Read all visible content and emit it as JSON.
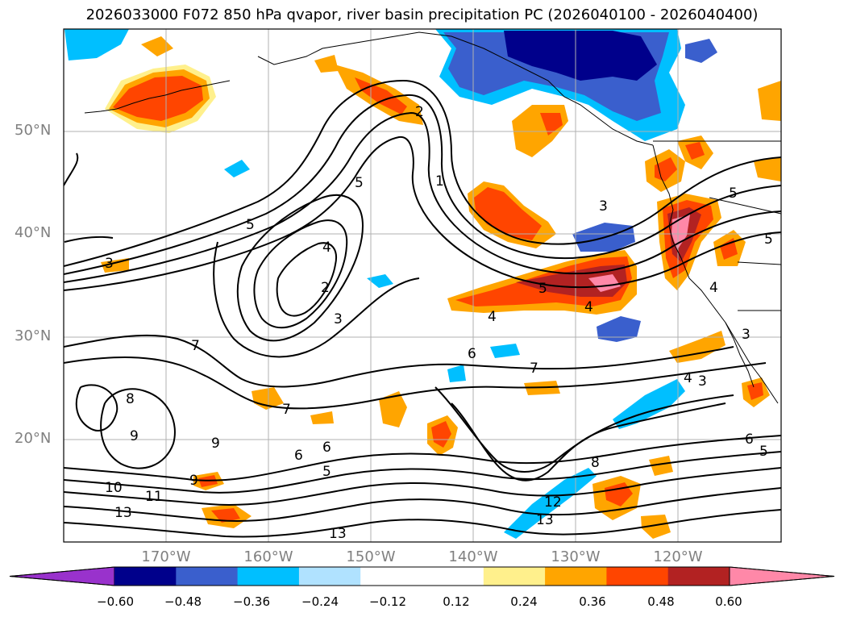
{
  "title": "2026033000 F072 850 hPa qvapor, river basin precipitation PC (2026040100 - 2026040400)",
  "map": {
    "lat_labels": [
      "50°N",
      "40°N",
      "30°N",
      "20°N"
    ],
    "lon_labels": [
      "170°W",
      "160°W",
      "150°W",
      "140°W",
      "130°W",
      "120°W"
    ],
    "contour_labels": [
      "2",
      "3",
      "1",
      "5",
      "3",
      "5",
      "4",
      "2",
      "3",
      "5",
      "4",
      "4",
      "6",
      "7",
      "4",
      "3",
      "7",
      "8",
      "9",
      "9",
      "7",
      "6",
      "6",
      "5",
      "10",
      "11",
      "13",
      "9",
      "13",
      "12",
      "13",
      "8",
      "6",
      "5",
      "4",
      "3",
      "5",
      "5"
    ]
  },
  "colorbar": {
    "colors": [
      "#9932cc",
      "#00008b",
      "#3a5fcd",
      "#00bfff",
      "#b0e2ff",
      "#ffffff",
      "#ffffff",
      "#fff08c",
      "#ffa500",
      "#ff4500",
      "#b22222",
      "#ff88a8"
    ],
    "tick_labels": [
      "−0.60",
      "−0.48",
      "−0.36",
      "−0.24",
      "−0.12",
      "0.12",
      "0.24",
      "0.36",
      "0.48",
      "0.60"
    ]
  }
}
